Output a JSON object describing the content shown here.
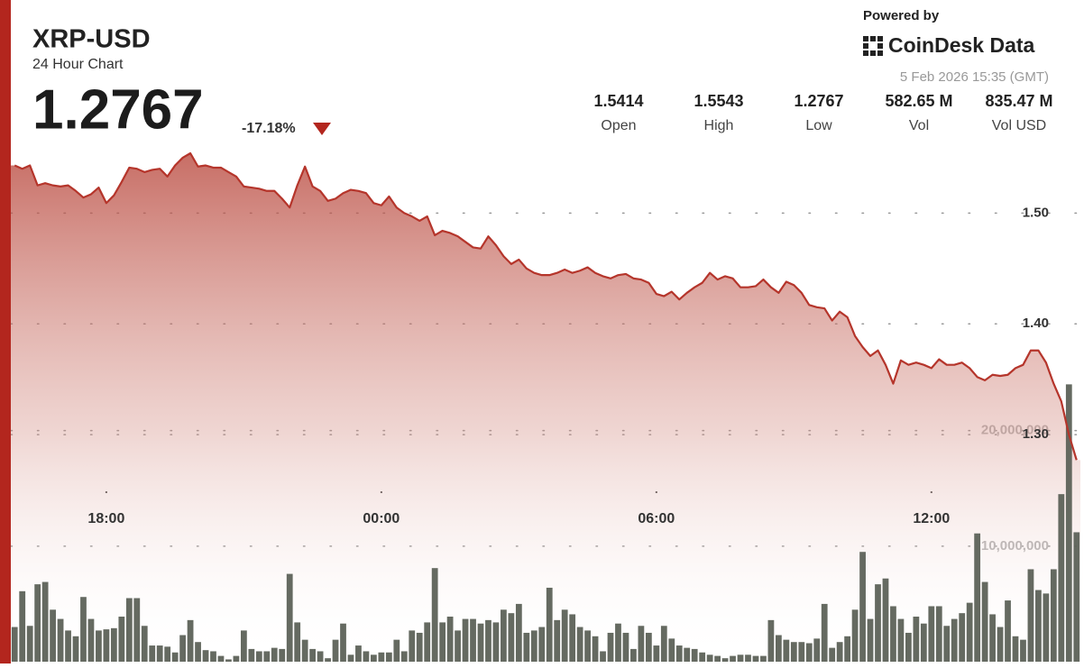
{
  "header": {
    "symbol": "XRP-USD",
    "subtitle": "24 Hour Chart",
    "price": "1.2767",
    "change": "-17.18%",
    "powered_by": "Powered by",
    "brand": "CoinDesk Data",
    "timestamp": "5 Feb 2026 15:35 (GMT)"
  },
  "stats": [
    {
      "value": "1.5414",
      "label": "Open"
    },
    {
      "value": "1.5543",
      "label": "High"
    },
    {
      "value": "1.2767",
      "label": "Low"
    },
    {
      "value": "582.65 M",
      "label": "Vol"
    },
    {
      "value": "835.47 M",
      "label": "Vol USD"
    }
  ],
  "chart_data": {
    "type": "line",
    "categories": [
      null,
      null,
      null,
      null,
      null,
      null,
      null,
      null,
      null,
      null,
      null,
      null,
      "18:00",
      null,
      null,
      null,
      null,
      null,
      null,
      null,
      null,
      null,
      null,
      null,
      null,
      null,
      null,
      null,
      null,
      null,
      null,
      null,
      null,
      null,
      null,
      null,
      null,
      null,
      null,
      null,
      null,
      null,
      null,
      null,
      null,
      null,
      null,
      null,
      "00:00",
      null,
      null,
      null,
      null,
      null,
      null,
      null,
      null,
      null,
      null,
      null,
      null,
      null,
      null,
      null,
      null,
      null,
      null,
      null,
      null,
      null,
      null,
      null,
      null,
      null,
      null,
      null,
      null,
      null,
      null,
      null,
      null,
      null,
      null,
      null,
      "06:00",
      null,
      null,
      null,
      null,
      null,
      null,
      null,
      null,
      null,
      null,
      null,
      null,
      null,
      null,
      null,
      null,
      null,
      null,
      null,
      null,
      null,
      null,
      null,
      null,
      null,
      null,
      null,
      null,
      null,
      null,
      null,
      null,
      null,
      null,
      null,
      "12:00",
      null,
      null,
      null,
      null,
      null,
      null,
      null,
      null,
      null,
      null,
      null,
      null,
      null,
      null,
      null,
      null,
      null,
      null,
      null
    ],
    "series": [
      {
        "type": "line",
        "color": "#b5352b",
        "values": [
          1.543,
          1.54,
          1.543,
          1.525,
          1.527,
          1.525,
          1.524,
          1.525,
          1.52,
          1.514,
          1.517,
          1.523,
          1.509,
          1.516,
          1.528,
          1.541,
          1.54,
          1.537,
          1.539,
          1.54,
          1.533,
          1.543,
          1.55,
          1.554,
          1.542,
          1.543,
          1.541,
          1.541,
          1.537,
          1.533,
          1.524,
          1.523,
          1.522,
          1.52,
          1.52,
          1.513,
          1.505,
          1.525,
          1.542,
          1.524,
          1.52,
          1.511,
          1.513,
          1.518,
          1.521,
          1.52,
          1.518,
          1.509,
          1.507,
          1.515,
          1.505,
          1.5,
          1.497,
          1.493,
          1.497,
          1.48,
          1.484,
          1.482,
          1.479,
          1.474,
          1.469,
          1.468,
          1.479,
          1.471,
          1.461,
          1.454,
          1.458,
          1.45,
          1.446,
          1.444,
          1.444,
          1.446,
          1.449,
          1.446,
          1.448,
          1.451,
          1.446,
          1.443,
          1.441,
          1.444,
          1.445,
          1.441,
          1.44,
          1.437,
          1.427,
          1.425,
          1.429,
          1.422,
          1.428,
          1.433,
          1.437,
          1.446,
          1.44,
          1.443,
          1.441,
          1.433,
          1.433,
          1.434,
          1.44,
          1.433,
          1.428,
          1.438,
          1.435,
          1.428,
          1.417,
          1.415,
          1.414,
          1.403,
          1.411,
          1.406,
          1.389,
          1.379,
          1.371,
          1.376,
          1.363,
          1.346,
          1.367,
          1.363,
          1.365,
          1.363,
          1.36,
          1.368,
          1.363,
          1.363,
          1.365,
          1.36,
          1.352,
          1.349,
          1.354,
          1.353,
          1.354,
          1.36,
          1.363,
          1.376,
          1.376,
          1.365,
          1.346,
          1.33,
          1.3,
          1.277
        ]
      },
      {
        "type": "bar",
        "axis": "y2",
        "color": "#5d6259",
        "values": [
          3000000,
          6100000,
          3100000,
          6700000,
          6900000,
          4500000,
          3700000,
          2700000,
          2200000,
          5600000,
          3700000,
          2700000,
          2800000,
          2900000,
          3900000,
          5500000,
          5500000,
          3100000,
          1400000,
          1400000,
          1300000,
          800000,
          2300000,
          3600000,
          1700000,
          1000000,
          900000,
          500000,
          200000,
          500000,
          2700000,
          1100000,
          900000,
          900000,
          1200000,
          1100000,
          7600000,
          3400000,
          1900000,
          1100000,
          900000,
          300000,
          1900000,
          3300000,
          600000,
          1400000,
          900000,
          600000,
          800000,
          800000,
          1900000,
          900000,
          2700000,
          2500000,
          3400000,
          8100000,
          3400000,
          3900000,
          2700000,
          3700000,
          3700000,
          3300000,
          3600000,
          3400000,
          4500000,
          4200000,
          5000000,
          2500000,
          2700000,
          3000000,
          6400000,
          3600000,
          4500000,
          4100000,
          3000000,
          2700000,
          2200000,
          900000,
          2500000,
          3300000,
          2500000,
          1100000,
          3100000,
          2500000,
          1400000,
          3100000,
          2000000,
          1400000,
          1200000,
          1100000,
          800000,
          600000,
          500000,
          300000,
          500000,
          600000,
          600000,
          500000,
          500000,
          3600000,
          2300000,
          1900000,
          1700000,
          1700000,
          1600000,
          2000000,
          5000000,
          1200000,
          1700000,
          2200000,
          4500000,
          9500000,
          3700000,
          6700000,
          7200000,
          4800000,
          3700000,
          2500000,
          3900000,
          3300000,
          4800000,
          4800000,
          3100000,
          3700000,
          4200000,
          5100000,
          11100000,
          6900000,
          4100000,
          3000000,
          5300000,
          2200000,
          1900000,
          8000000,
          6200000,
          5900000,
          8000000,
          14500000,
          24000000,
          11200000
        ]
      }
    ],
    "ylim": [
      1.095,
      1.554
    ],
    "yticks": [
      {
        "value": 1.5,
        "label": "1.50"
      },
      {
        "value": 1.4,
        "label": "1.40"
      },
      {
        "value": 1.3,
        "label": "1.30"
      }
    ],
    "y2lim": [
      0,
      44000000
    ],
    "y2ticks": [
      {
        "value": 20000000,
        "label": "20,000,000"
      },
      {
        "value": 10000000,
        "label": "10,000,000"
      }
    ],
    "grid": true
  }
}
